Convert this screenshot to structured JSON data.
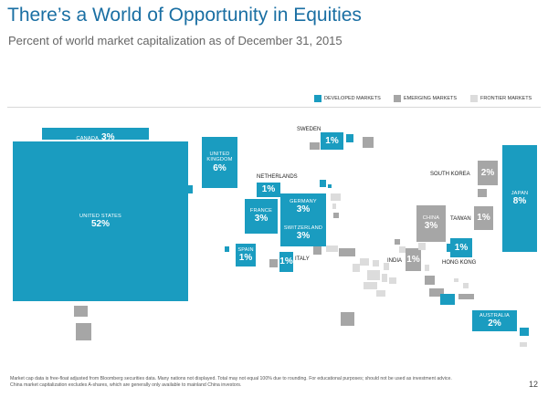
{
  "title": "There’s a World of Opportunity in Equities",
  "subtitle": "Percent of world market capitalization as of December 31, 2015",
  "legend": [
    {
      "label": "DEVELOPED MARKETS",
      "color": "#1a9cc0"
    },
    {
      "label": "EMERGING MARKETS",
      "color": "#a6a6a6"
    },
    {
      "label": "FRONTIER MARKETS",
      "color": "#dcdcdc"
    }
  ],
  "chart_data": {
    "type": "heatmap",
    "title": "There’s a World of Opportunity in Equities",
    "subtitle": "Percent of world market capitalization as of December 31, 2015",
    "unit": "%",
    "series": [
      {
        "name": "DEVELOPED MARKETS",
        "color": "#1a9cc0"
      },
      {
        "name": "EMERGING MARKETS",
        "color": "#a6a6a6"
      },
      {
        "name": "FRONTIER MARKETS",
        "color": "#dcdcdc"
      }
    ],
    "values": [
      {
        "name": "UNITED STATES",
        "percent": 52,
        "value_label": "52%",
        "market": "DEVELOPED MARKETS"
      },
      {
        "name": "CANADA",
        "percent": 3,
        "value_label": "3%",
        "market": "DEVELOPED MARKETS"
      },
      {
        "name": "UNITED KINGDOM",
        "percent": 6,
        "value_label": "6%",
        "market": "DEVELOPED MARKETS"
      },
      {
        "name": "NETHERLANDS",
        "percent": 1,
        "value_label": "1%",
        "market": "DEVELOPED MARKETS"
      },
      {
        "name": "FRANCE",
        "percent": 3,
        "value_label": "3%",
        "market": "DEVELOPED MARKETS"
      },
      {
        "name": "GERMANY",
        "percent": 3,
        "value_label": "3%",
        "market": "DEVELOPED MARKETS"
      },
      {
        "name": "SWITZERLAND",
        "percent": 3,
        "value_label": "3%",
        "market": "DEVELOPED MARKETS"
      },
      {
        "name": "SPAIN",
        "percent": 1,
        "value_label": "1%",
        "market": "DEVELOPED MARKETS"
      },
      {
        "name": "ITALY",
        "percent": 1,
        "value_label": "1%",
        "market": "DEVELOPED MARKETS"
      },
      {
        "name": "SWEDEN",
        "percent": 1,
        "value_label": "1%",
        "market": "DEVELOPED MARKETS"
      },
      {
        "name": "JAPAN",
        "percent": 8,
        "value_label": "8%",
        "market": "DEVELOPED MARKETS"
      },
      {
        "name": "HONG KONG",
        "percent": 1,
        "value_label": "1%",
        "market": "DEVELOPED MARKETS"
      },
      {
        "name": "AUSTRALIA",
        "percent": 2,
        "value_label": "2%",
        "market": "DEVELOPED MARKETS"
      },
      {
        "name": "SOUTH KOREA",
        "percent": 2,
        "value_label": "2%",
        "market": "EMERGING MARKETS"
      },
      {
        "name": "CHINA",
        "percent": 3,
        "value_label": "3%",
        "market": "EMERGING MARKETS"
      },
      {
        "name": "TAIWAN",
        "percent": 1,
        "value_label": "1%",
        "market": "EMERGING MARKETS"
      },
      {
        "name": "INDIA",
        "percent": 1,
        "value_label": "1%",
        "market": "EMERGING MARKETS"
      }
    ]
  },
  "footnote_lines": [
    "Market cap data is free-float adjusted from Bloomberg securities data. Many nations not displayed. Total may not equal 100% due to rounding. For educational purposes; should not be used as investment advice.",
    "China market capitalization excludes A-shares, which are generally only available to mainland China investors."
  ],
  "page_number": "12"
}
